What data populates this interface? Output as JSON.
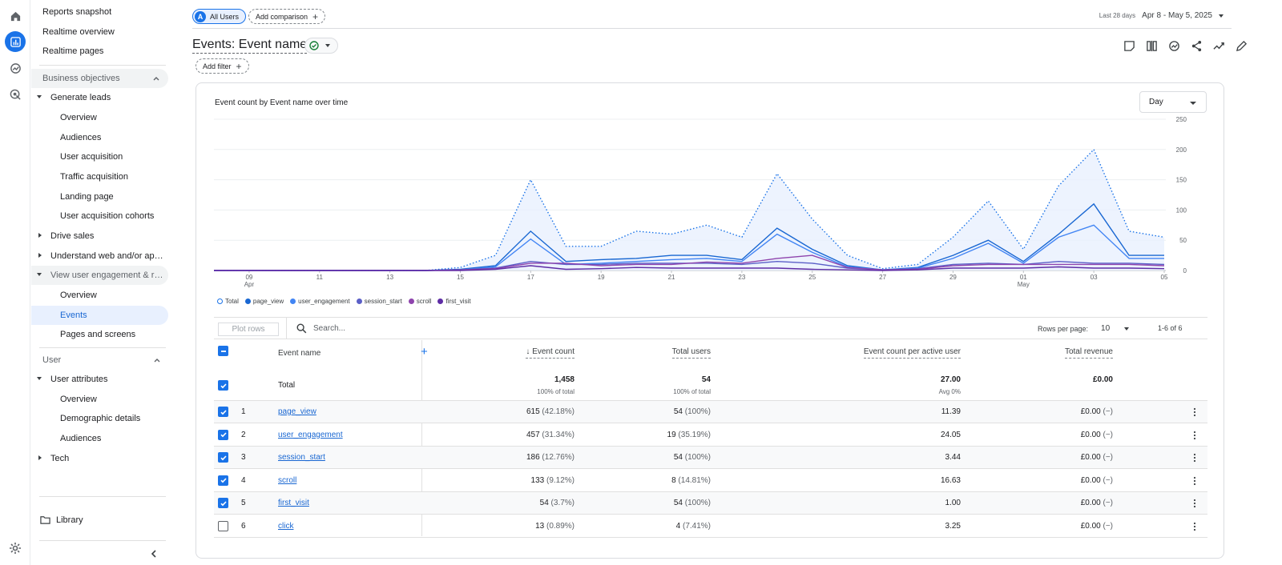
{
  "sidebar": {
    "items": [
      {
        "label": "Reports snapshot"
      },
      {
        "label": "Realtime overview"
      },
      {
        "label": "Realtime pages"
      },
      {
        "label": "Business objectives"
      },
      {
        "label": "Generate leads"
      },
      {
        "label": "Overview"
      },
      {
        "label": "Audiences"
      },
      {
        "label": "User acquisition"
      },
      {
        "label": "Traffic acquisition"
      },
      {
        "label": "Landing page"
      },
      {
        "label": "User acquisition cohorts"
      },
      {
        "label": "Drive sales"
      },
      {
        "label": "Understand web and/or app t..."
      },
      {
        "label": "View user engagement & rete..."
      },
      {
        "label": "Overview"
      },
      {
        "label": "Events"
      },
      {
        "label": "Pages and screens"
      },
      {
        "label": "User"
      },
      {
        "label": "User attributes"
      },
      {
        "label": "Overview"
      },
      {
        "label": "Demographic details"
      },
      {
        "label": "Audiences"
      },
      {
        "label": "Tech"
      }
    ],
    "library": "Library"
  },
  "topbar": {
    "user_chip": "All Users",
    "user_chip_avatar": "A",
    "add_comparison": "Add comparison",
    "date_label": "Last 28 days",
    "date_range": "Apr 8 - May 5, 2025"
  },
  "page": {
    "title": "Events: Event name",
    "add_filter": "Add filter"
  },
  "chart": {
    "title": "Event count by Event name over time",
    "granularity": "Day"
  },
  "chart_data": {
    "type": "line",
    "x": [
      "Apr 8",
      "Apr 9",
      "Apr 10",
      "Apr 11",
      "Apr 12",
      "Apr 13",
      "Apr 14",
      "Apr 15",
      "Apr 16",
      "Apr 17",
      "Apr 18",
      "Apr 19",
      "Apr 20",
      "Apr 21",
      "Apr 22",
      "Apr 23",
      "Apr 24",
      "Apr 25",
      "Apr 26",
      "Apr 27",
      "Apr 28",
      "Apr 29",
      "Apr 30",
      "May 1",
      "May 2",
      "May 3",
      "May 4",
      "May 5"
    ],
    "x_tick_labels": [
      {
        "label": "09",
        "sub": "Apr",
        "index": 1
      },
      {
        "label": "11",
        "sub": "",
        "index": 3
      },
      {
        "label": "13",
        "sub": "",
        "index": 5
      },
      {
        "label": "15",
        "sub": "",
        "index": 7
      },
      {
        "label": "17",
        "sub": "",
        "index": 9
      },
      {
        "label": "19",
        "sub": "",
        "index": 11
      },
      {
        "label": "21",
        "sub": "",
        "index": 13
      },
      {
        "label": "23",
        "sub": "",
        "index": 15
      },
      {
        "label": "25",
        "sub": "",
        "index": 17
      },
      {
        "label": "27",
        "sub": "",
        "index": 19
      },
      {
        "label": "29",
        "sub": "",
        "index": 21
      },
      {
        "label": "01",
        "sub": "May",
        "index": 23
      },
      {
        "label": "03",
        "sub": "",
        "index": 25
      },
      {
        "label": "05",
        "sub": "",
        "index": 27
      }
    ],
    "y_ticks": [
      "0",
      "50",
      "100",
      "150",
      "200",
      "250"
    ],
    "ylim": [
      0,
      250
    ],
    "grid": true,
    "legend_position": "bottom-left",
    "series": [
      {
        "name": "Total",
        "color": "#1a73e8",
        "style": "dotted-area",
        "values": [
          0,
          0,
          0,
          0,
          0,
          0,
          0,
          5,
          25,
          150,
          40,
          40,
          65,
          60,
          75,
          55,
          160,
          85,
          25,
          3,
          10,
          55,
          115,
          35,
          140,
          200,
          65,
          55
        ]
      },
      {
        "name": "page_view",
        "color": "#1967d2",
        "values": [
          0,
          0,
          0,
          0,
          0,
          0,
          0,
          2,
          8,
          65,
          15,
          18,
          20,
          25,
          25,
          18,
          70,
          35,
          8,
          1,
          5,
          25,
          50,
          15,
          60,
          110,
          25,
          25
        ]
      },
      {
        "name": "user_engagement",
        "color": "#4285f4",
        "values": [
          0,
          0,
          0,
          0,
          0,
          0,
          0,
          1,
          6,
          52,
          10,
          12,
          15,
          18,
          20,
          15,
          60,
          30,
          6,
          1,
          4,
          20,
          45,
          12,
          55,
          75,
          20,
          20
        ]
      },
      {
        "name": "session_start",
        "color": "#5b5fc7",
        "values": [
          0,
          0,
          0,
          0,
          0,
          0,
          0,
          1,
          4,
          15,
          10,
          10,
          12,
          12,
          12,
          10,
          15,
          12,
          4,
          1,
          3,
          10,
          12,
          10,
          15,
          12,
          12,
          10
        ]
      },
      {
        "name": "scroll",
        "color": "#8e44ad",
        "values": [
          0,
          0,
          0,
          0,
          0,
          0,
          0,
          1,
          3,
          12,
          12,
          8,
          10,
          10,
          14,
          12,
          20,
          25,
          5,
          1,
          2,
          8,
          10,
          10,
          10,
          10,
          10,
          8
        ]
      },
      {
        "name": "first_visit",
        "color": "#5e2ca5",
        "values": [
          0,
          0,
          0,
          0,
          0,
          0,
          0,
          0,
          2,
          8,
          2,
          3,
          5,
          4,
          4,
          4,
          4,
          2,
          1,
          0,
          1,
          4,
          4,
          4,
          6,
          4,
          4,
          3
        ]
      }
    ]
  },
  "table": {
    "plot_rows": "Plot rows",
    "search_placeholder": "Search...",
    "rows_per_page_label": "Rows per page:",
    "rows_per_page": "10",
    "pager": "1-6 of 6",
    "headers": {
      "event_name": "Event name",
      "event_count": "Event count",
      "total_users": "Total users",
      "per_user": "Event count per active user",
      "revenue": "Total revenue"
    },
    "total": {
      "label": "Total",
      "event_count": "1,458",
      "event_count_sub": "100% of total",
      "total_users": "54",
      "total_users_sub": "100% of total",
      "per_user": "27.00",
      "per_user_sub": "Avg 0%",
      "revenue": "£0.00"
    },
    "rows": [
      {
        "index": "1",
        "name": "page_view",
        "count": "615",
        "count_pct": "(42.18%)",
        "users": "54",
        "users_pct": "(100%)",
        "per_user": "11.39",
        "revenue": "£0.00",
        "revenue_pct": "(−)",
        "checked": true
      },
      {
        "index": "2",
        "name": "user_engagement",
        "count": "457",
        "count_pct": "(31.34%)",
        "users": "19",
        "users_pct": "(35.19%)",
        "per_user": "24.05",
        "revenue": "£0.00",
        "revenue_pct": "(−)",
        "checked": true
      },
      {
        "index": "3",
        "name": "session_start",
        "count": "186",
        "count_pct": "(12.76%)",
        "users": "54",
        "users_pct": "(100%)",
        "per_user": "3.44",
        "revenue": "£0.00",
        "revenue_pct": "(−)",
        "checked": true
      },
      {
        "index": "4",
        "name": "scroll",
        "count": "133",
        "count_pct": "(9.12%)",
        "users": "8",
        "users_pct": "(14.81%)",
        "per_user": "16.63",
        "revenue": "£0.00",
        "revenue_pct": "(−)",
        "checked": true
      },
      {
        "index": "5",
        "name": "first_visit",
        "count": "54",
        "count_pct": "(3.7%)",
        "users": "54",
        "users_pct": "(100%)",
        "per_user": "1.00",
        "revenue": "£0.00",
        "revenue_pct": "(−)",
        "checked": true
      },
      {
        "index": "6",
        "name": "click",
        "count": "13",
        "count_pct": "(0.89%)",
        "users": "4",
        "users_pct": "(7.41%)",
        "per_user": "3.25",
        "revenue": "£0.00",
        "revenue_pct": "(−)",
        "checked": false
      }
    ]
  }
}
